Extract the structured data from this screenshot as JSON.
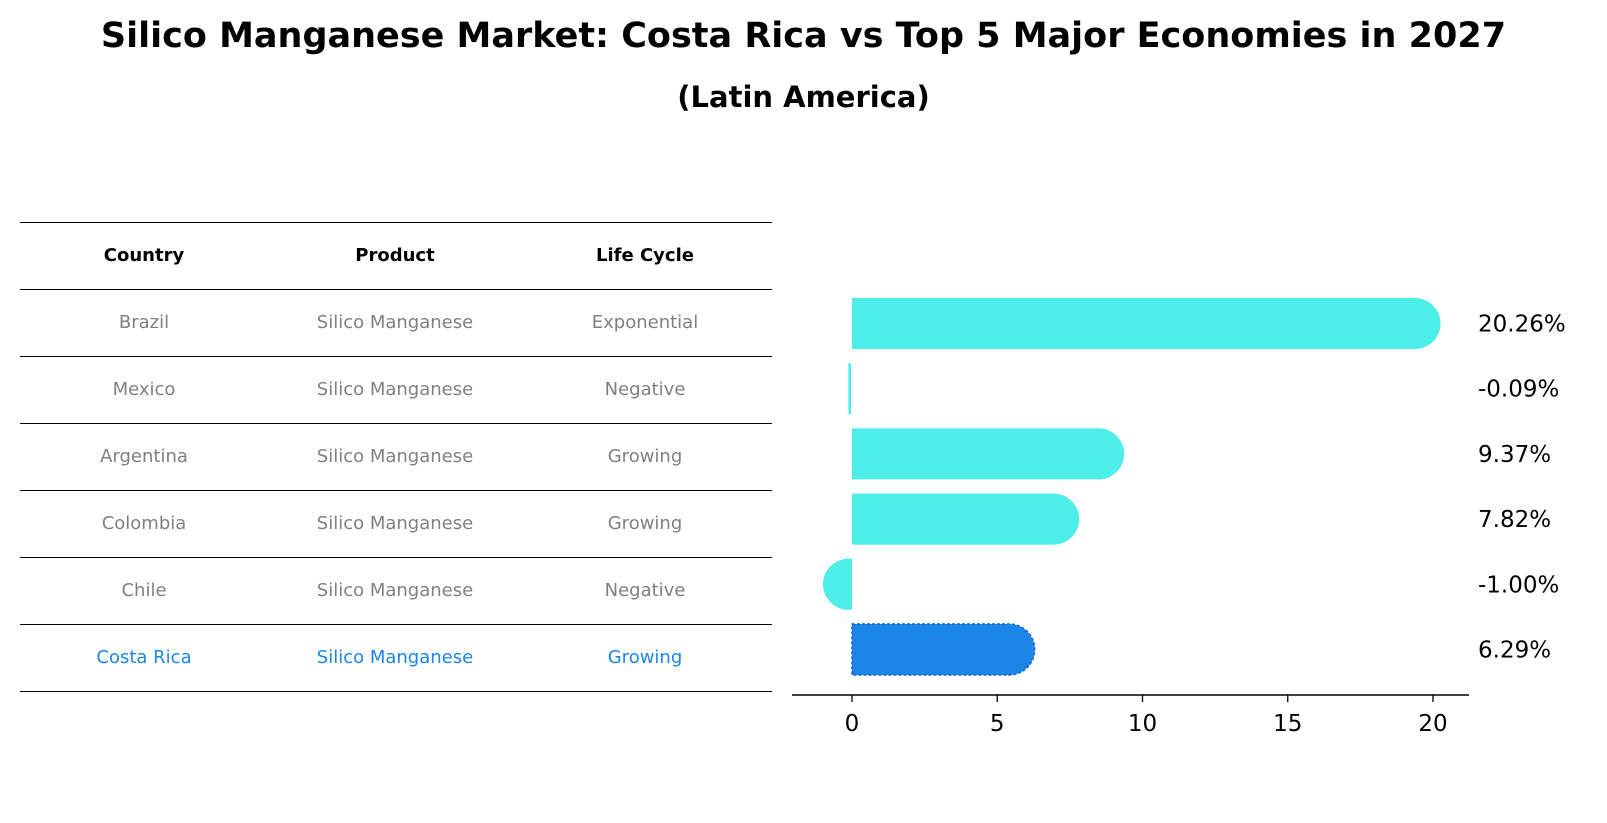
{
  "title": "Silico Manganese Market: Costa Rica vs Top 5 Major Economies in 2027",
  "subtitle": "(Latin America)",
  "table": {
    "headers": [
      "Country",
      "Product",
      "Life Cycle"
    ],
    "rows": [
      [
        "Brazil",
        "Silico Manganese",
        "Exponential"
      ],
      [
        "Mexico",
        "Silico Manganese",
        "Negative"
      ],
      [
        "Argentina",
        "Silico Manganese",
        "Growing"
      ],
      [
        "Colombia",
        "Silico Manganese",
        "Growing"
      ],
      [
        "Chile",
        "Silico Manganese",
        "Negative"
      ],
      [
        "Costa Rica",
        "Silico Manganese",
        "Growing"
      ]
    ]
  },
  "colors": {
    "bar": "#4deeea",
    "highlight": "#1b86e8",
    "muted_text": "#808080"
  },
  "chart_data": {
    "type": "bar",
    "orientation": "horizontal",
    "categories": [
      "Brazil",
      "Mexico",
      "Argentina",
      "Colombia",
      "Chile",
      "Costa Rica"
    ],
    "values": [
      20.26,
      -0.09,
      9.37,
      7.82,
      -1.0,
      6.29
    ],
    "value_labels": [
      "20.26%",
      "-0.09%",
      "9.37%",
      "7.82%",
      "-1.00%",
      "6.29%"
    ],
    "highlight": "Costa Rica",
    "xticks": [
      0,
      5,
      10,
      15,
      20
    ],
    "xlim": [
      -2.1,
      21.3
    ],
    "xlabel": "",
    "ylabel": "",
    "grid": false
  }
}
